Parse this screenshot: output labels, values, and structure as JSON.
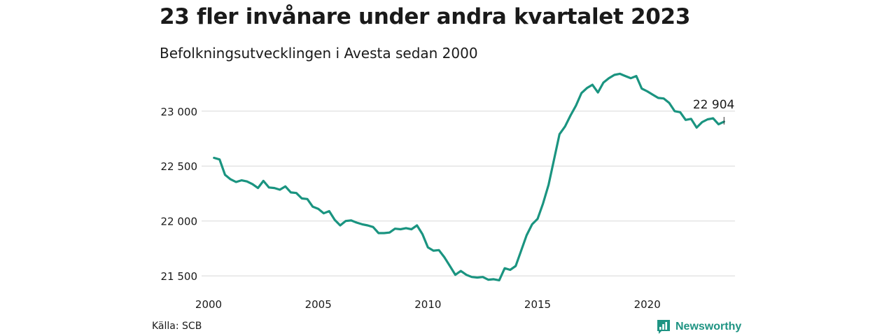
{
  "header": {
    "title": "23 fler invånare under andra kvartalet 2023",
    "subtitle": "Befolkningsutvecklingen i Avesta sedan 2000"
  },
  "footer": {
    "source": "Källa: SCB",
    "brand": "Newsworthy",
    "brand_color": "#1f9483"
  },
  "chart_data": {
    "type": "line",
    "title": "23 fler invånare under andra kvartalet 2023",
    "subtitle": "Befolkningsutvecklingen i Avesta sedan 2000",
    "xlabel": "",
    "ylabel": "",
    "xlim": [
      2000,
      2024
    ],
    "ylim": [
      21450,
      23400
    ],
    "x_ticks": [
      2000,
      2005,
      2010,
      2015,
      2020
    ],
    "y_ticks": [
      21500,
      22000,
      22500,
      23000
    ],
    "y_tick_labels": [
      "21 500",
      "22 000",
      "22 500",
      "23 000"
    ],
    "grid": "horizontal",
    "line_color": "#1a9480",
    "annotation": {
      "text": "22 904",
      "x": 2023.5,
      "y": 22904
    },
    "series": [
      {
        "x": [
          2000.25,
          2000.5,
          2000.75,
          2001.0,
          2001.25,
          2001.5,
          2001.75,
          2002.0,
          2002.25,
          2002.5,
          2002.75,
          2003.0,
          2003.25,
          2003.5,
          2003.75,
          2004.0,
          2004.25,
          2004.5,
          2004.75,
          2005.0,
          2005.25,
          2005.5,
          2005.75,
          2006.0,
          2006.25,
          2006.5,
          2006.75,
          2007.0,
          2007.25,
          2007.5,
          2007.75,
          2008.0,
          2008.25,
          2008.5,
          2008.75,
          2009.0,
          2009.25,
          2009.5,
          2009.75,
          2010.0,
          2010.25,
          2010.5,
          2010.75,
          2011.0,
          2011.25,
          2011.5,
          2011.75,
          2012.0,
          2012.25,
          2012.5,
          2012.75,
          2013.0,
          2013.25,
          2013.5,
          2013.75,
          2014.0,
          2014.25,
          2014.5,
          2014.75,
          2015.0,
          2015.25,
          2015.5,
          2015.75,
          2016.0,
          2016.25,
          2016.5,
          2016.75,
          2017.0,
          2017.25,
          2017.5,
          2017.75,
          2018.0,
          2018.25,
          2018.5,
          2018.75,
          2019.0,
          2019.25,
          2019.5,
          2019.75,
          2020.0,
          2020.25,
          2020.5,
          2020.75,
          2021.0,
          2021.25,
          2021.5,
          2021.75,
          2022.0,
          2022.25,
          2022.5,
          2022.75,
          2023.0,
          2023.25,
          2023.5
        ],
        "values": [
          22575,
          22560,
          22420,
          22380,
          22355,
          22370,
          22360,
          22335,
          22300,
          22365,
          22305,
          22300,
          22285,
          22315,
          22260,
          22255,
          22205,
          22200,
          22130,
          22110,
          22070,
          22090,
          22010,
          21960,
          22000,
          22005,
          21985,
          21970,
          21960,
          21945,
          21890,
          21890,
          21895,
          21930,
          21925,
          21935,
          21925,
          21960,
          21880,
          21760,
          21730,
          21735,
          21670,
          21590,
          21510,
          21545,
          21510,
          21490,
          21485,
          21490,
          21465,
          21470,
          21460,
          21570,
          21555,
          21590,
          21730,
          21870,
          21970,
          22020,
          22160,
          22330,
          22560,
          22790,
          22860,
          22960,
          23050,
          23165,
          23210,
          23240,
          23170,
          23260,
          23300,
          23330,
          23340,
          23320,
          23300,
          23320,
          23205,
          23180,
          23150,
          23120,
          23115,
          23075,
          23000,
          22990,
          22920,
          22930,
          22850,
          22900,
          22925,
          22935,
          22880,
          22904
        ]
      }
    ]
  }
}
